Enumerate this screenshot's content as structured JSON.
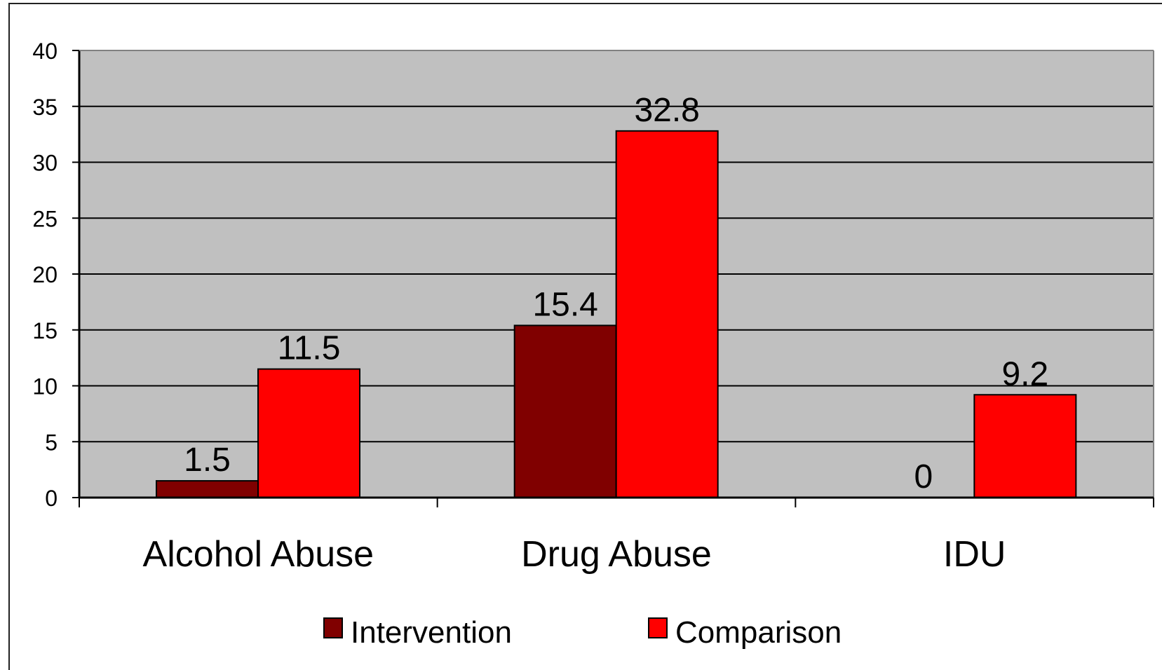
{
  "chart_data": {
    "type": "bar",
    "categories": [
      "Alcohol Abuse",
      "Drug Abuse",
      "IDU"
    ],
    "series": [
      {
        "name": "Intervention",
        "values": [
          1.5,
          15.4,
          0
        ],
        "labels": [
          "1.5",
          "15.4",
          "0"
        ],
        "color": "#800000"
      },
      {
        "name": "Comparison",
        "values": [
          11.5,
          32.8,
          9.2
        ],
        "labels": [
          "11.5",
          "32.8",
          "9.2"
        ],
        "color": "#ff0000"
      }
    ],
    "ylim": [
      0,
      40
    ],
    "yticks": [
      "0",
      "5",
      "10",
      "15",
      "20",
      "25",
      "30",
      "35",
      "40"
    ],
    "grid": true,
    "plot_background": "#c0c0c0",
    "legend_position": "bottom"
  }
}
